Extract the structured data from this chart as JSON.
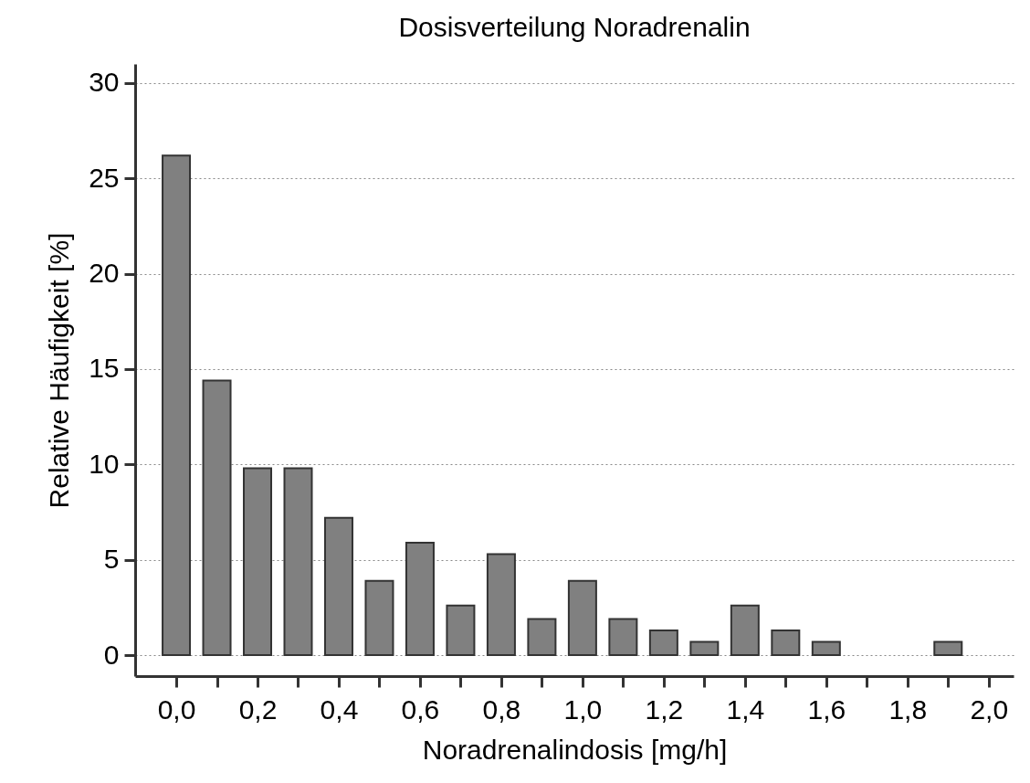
{
  "chart_data": {
    "type": "bar",
    "title": "Dosisverteilung Noradrenalin",
    "xlabel": "Noradrenalindosis [mg/h]",
    "ylabel": "Relative Häufigkeit [%]",
    "x": [
      0.0,
      0.1,
      0.2,
      0.3,
      0.4,
      0.5,
      0.6,
      0.7,
      0.8,
      0.9,
      1.0,
      1.1,
      1.2,
      1.3,
      1.4,
      1.5,
      1.6,
      1.7,
      1.8,
      1.9
    ],
    "values": [
      26.2,
      14.4,
      9.8,
      9.8,
      7.2,
      3.9,
      5.9,
      2.6,
      5.3,
      1.9,
      3.9,
      1.9,
      1.3,
      0.7,
      2.6,
      1.3,
      0.7,
      null,
      null,
      0.7
    ],
    "color": "#808080",
    "xlim": [
      -0.09,
      2.05
    ],
    "xticks": [
      {
        "value": 0.0,
        "label": "0,0"
      },
      {
        "value": 0.1,
        "label": null
      },
      {
        "value": 0.2,
        "label": "0,2"
      },
      {
        "value": 0.3,
        "label": null
      },
      {
        "value": 0.4,
        "label": "0,4"
      },
      {
        "value": 0.5,
        "label": null
      },
      {
        "value": 0.6,
        "label": "0,6"
      },
      {
        "value": 0.7,
        "label": null
      },
      {
        "value": 0.8,
        "label": "0,8"
      },
      {
        "value": 0.9,
        "label": null
      },
      {
        "value": 1.0,
        "label": "1,0"
      },
      {
        "value": 1.1,
        "label": null
      },
      {
        "value": 1.2,
        "label": "1,2"
      },
      {
        "value": 1.3,
        "label": null
      },
      {
        "value": 1.4,
        "label": "1,4"
      },
      {
        "value": 1.5,
        "label": null
      },
      {
        "value": 1.6,
        "label": "1,6"
      },
      {
        "value": 1.7,
        "label": null
      },
      {
        "value": 1.8,
        "label": "1,8"
      },
      {
        "value": 1.9,
        "label": null
      },
      {
        "value": 2.0,
        "label": "2,0"
      }
    ],
    "ylim": [
      -1.1,
      31
    ],
    "yticks": [
      0,
      5,
      10,
      15,
      20,
      25,
      30
    ],
    "grid": "y"
  }
}
